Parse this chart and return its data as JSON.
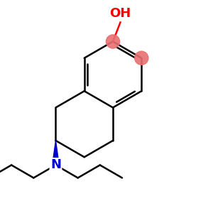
{
  "background": "#ffffff",
  "OH_color": "#ff0000",
  "N_color": "#0000cc",
  "bond_color": "#000000",
  "aromatic_dot_color": "#e87070",
  "line_width": 1.8,
  "figsize": [
    3.0,
    3.0
  ],
  "dpi": 100,
  "xlim": [
    0,
    10
  ],
  "ylim": [
    0,
    10
  ]
}
